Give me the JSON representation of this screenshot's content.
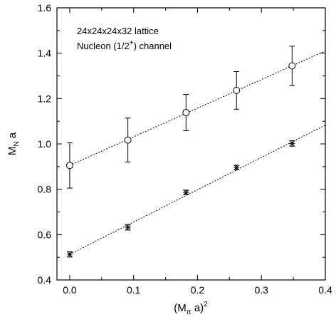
{
  "chart_data": {
    "type": "scatter",
    "xlabel": "(M",
    "xlabel_sub": "π",
    "xlabel_tail": " a)",
    "xlabel_sup": "2",
    "ylabel": "M",
    "ylabel_sub": "N",
    "ylabel_tail": " a",
    "xlim": [
      -0.02,
      0.4
    ],
    "ylim": [
      0.4,
      1.6
    ],
    "xticks": [
      0.0,
      0.1,
      0.2,
      0.3,
      0.4
    ],
    "xtick_labels": [
      "0.0",
      "0.1",
      "0.2",
      "0.3",
      "0.4"
    ],
    "yticks": [
      0.4,
      0.6,
      0.8,
      1.0,
      1.2,
      1.4,
      1.6
    ],
    "ytick_labels": [
      "0.4",
      "0.6",
      "0.8",
      "1.0",
      "1.2",
      "1.4",
      "1.6"
    ],
    "grid": false,
    "annotations": [
      {
        "text": "24x24x24x32 lattice"
      },
      {
        "text": "Nucleon (1/2",
        "sup": "+",
        "tail": ") channel"
      }
    ],
    "series": [
      {
        "marker": "circle",
        "points": [
          {
            "x": 0.0,
            "y": 0.905,
            "err": 0.1
          },
          {
            "x": 0.091,
            "y": 1.017,
            "err": 0.097
          },
          {
            "x": 0.182,
            "y": 1.138,
            "err": 0.08
          },
          {
            "x": 0.261,
            "y": 1.236,
            "err": 0.083
          },
          {
            "x": 0.348,
            "y": 1.344,
            "err": 0.087
          }
        ],
        "fit_line": {
          "x": [
            0.0,
            0.4
          ],
          "y": [
            0.905,
            1.41
          ]
        }
      },
      {
        "marker": "star",
        "points": [
          {
            "x": 0.0,
            "y": 0.513,
            "err": 0.012
          },
          {
            "x": 0.091,
            "y": 0.632,
            "err": 0.012
          },
          {
            "x": 0.182,
            "y": 0.786,
            "err": 0.01
          },
          {
            "x": 0.261,
            "y": 0.896,
            "err": 0.01
          },
          {
            "x": 0.348,
            "y": 1.002,
            "err": 0.012
          }
        ],
        "fit_line": {
          "x": [
            0.0,
            0.4
          ],
          "y": [
            0.513,
            1.083
          ]
        }
      }
    ]
  }
}
